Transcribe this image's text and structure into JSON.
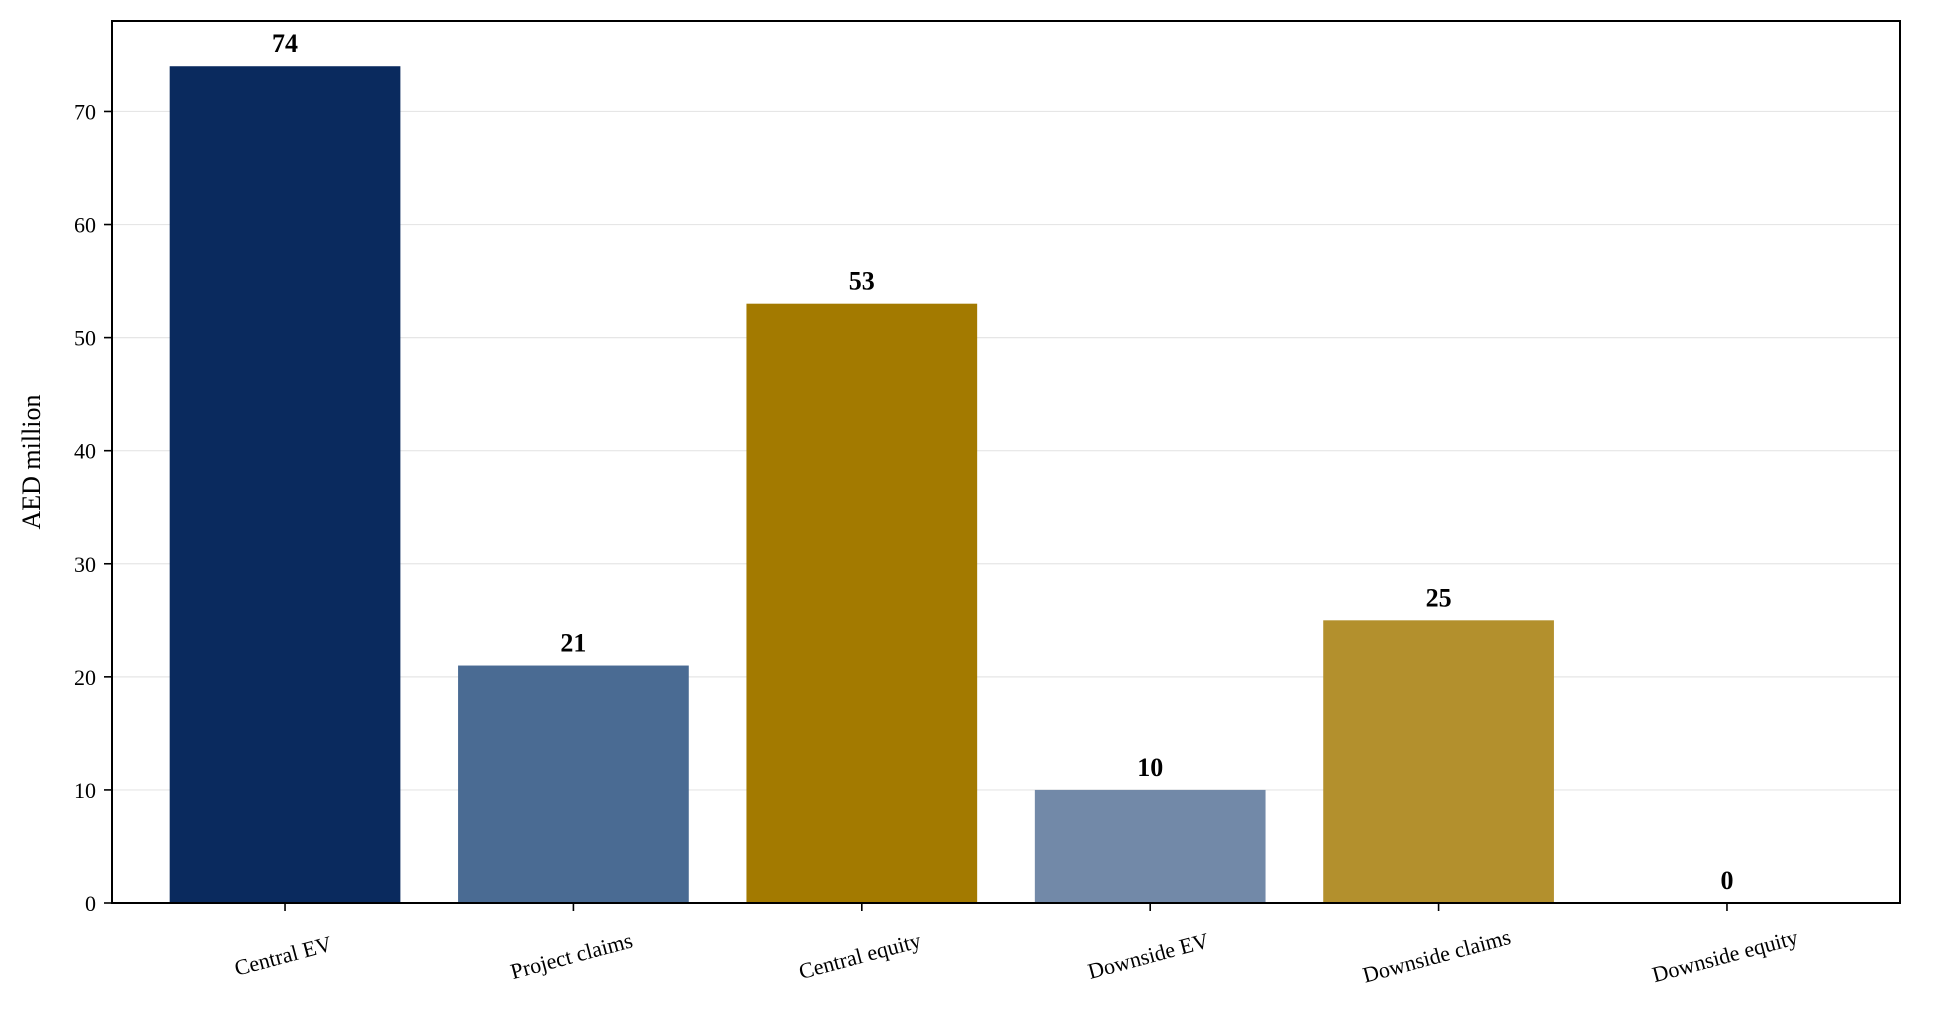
{
  "chart_data": {
    "type": "bar",
    "categories": [
      "Central EV",
      "Project claims",
      "Central equity",
      "Downside EV",
      "Downside claims",
      "Downside equity"
    ],
    "values": [
      74,
      21,
      53,
      10,
      25,
      0
    ],
    "data_labels": [
      "74",
      "21",
      "53",
      "10",
      "25",
      "0"
    ],
    "colors": [
      "#0a2a5e",
      "#4a6b93",
      "#a37a00",
      "#7289a8",
      "#b3902d",
      "#b3902d"
    ],
    "title": "",
    "xlabel": "",
    "ylabel": "AED million",
    "ylim": [
      0,
      78
    ],
    "yticks": [
      0,
      10,
      20,
      30,
      40,
      50,
      60,
      70
    ],
    "grid": "horizontal",
    "x_tick_rotation": "slanted"
  }
}
